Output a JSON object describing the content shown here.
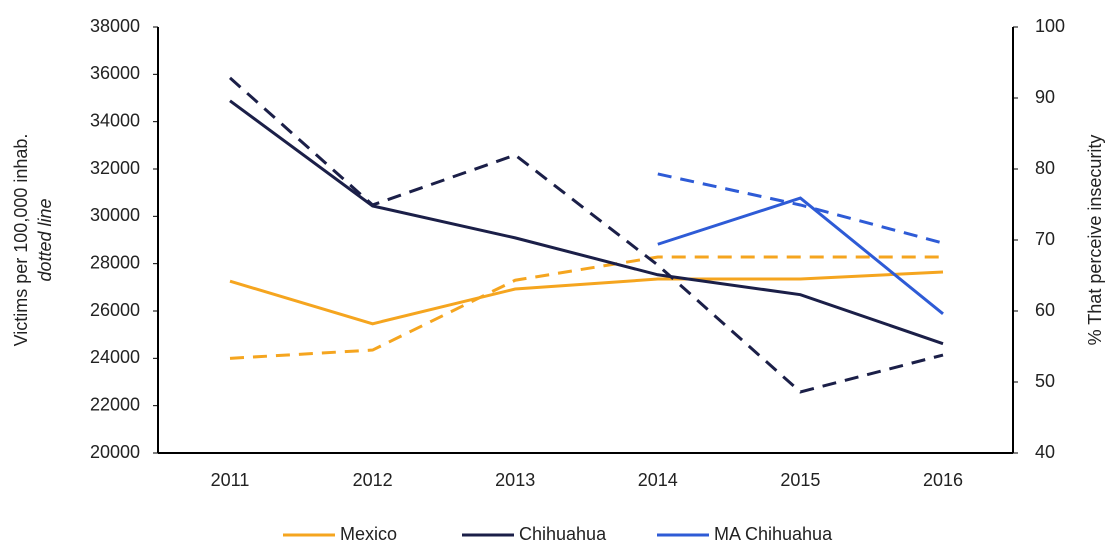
{
  "chart_data": {
    "type": "line",
    "ylabel": "Victims per 100,000 inhab.",
    "ylabel_note": "dotted line",
    "y2label": "% That perceive insecurity",
    "categories": [
      "2011",
      "2012",
      "2013",
      "2014",
      "2015",
      "2016"
    ],
    "ylim": [
      20000,
      38000
    ],
    "yticks": [
      20000,
      22000,
      24000,
      26000,
      28000,
      30000,
      32000,
      34000,
      36000,
      38000
    ],
    "y2lim": [
      40,
      100
    ],
    "y2ticks": [
      40,
      50,
      60,
      70,
      80,
      90,
      100
    ],
    "series": [
      {
        "name": "Mexico",
        "color": "#f5a51f",
        "values": [
          24000,
          24350,
          27300,
          28280,
          28280,
          28280
        ],
        "y2_values": [
          64.2,
          58.2,
          63.1,
          64.5,
          64.5,
          65.5
        ]
      },
      {
        "name": "Chihuahua",
        "color": "#1b1f48",
        "values": [
          35850,
          30480,
          32590,
          27940,
          22580,
          24140
        ],
        "y2_values": [
          89.6,
          74.8,
          70.3,
          65.1,
          62.3,
          55.4
        ]
      },
      {
        "name": "MA Chihuahua",
        "color": "#2e5bd6",
        "values": [
          null,
          null,
          null,
          31790,
          30480,
          28870
        ],
        "y2_values": [
          null,
          null,
          null,
          69.4,
          75.9,
          59.6
        ]
      }
    ]
  }
}
